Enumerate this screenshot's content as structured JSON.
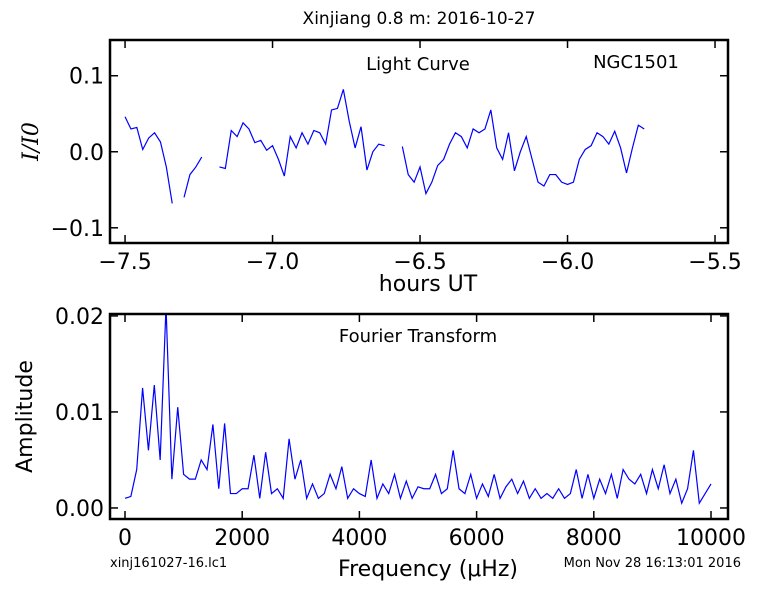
{
  "figure": {
    "title": "Xinjiang 0.8 m:  2016-10-27",
    "footer_left": "xinj161027-16.lc1",
    "footer_right": "Mon Nov 28 16:13:01 2016"
  },
  "chart_data": [
    {
      "type": "line",
      "xlabel": "hours UT",
      "ylabel": "I/I0",
      "annotations": [
        "Light Curve",
        "NGC1501"
      ],
      "color": "#0000ff",
      "xlim": [
        -7.551,
        -5.456
      ],
      "ylim": [
        -0.12,
        0.147
      ],
      "xticks": [
        {
          "value": -7.5,
          "label": "−7.5"
        },
        {
          "value": -7.0,
          "label": "−7.0"
        },
        {
          "value": -6.5,
          "label": "−6.5"
        },
        {
          "value": -6.0,
          "label": "−6.0"
        },
        {
          "value": -5.5,
          "label": "−5.5"
        }
      ],
      "yticks": [
        {
          "value": 0.1,
          "label": "0.1"
        },
        {
          "value": 0.0,
          "label": "0.0"
        },
        {
          "value": -0.1,
          "label": "−0.1"
        }
      ],
      "x": [
        -7.5,
        -7.48,
        -7.46,
        -7.44,
        -7.42,
        -7.4,
        -7.38,
        -7.36,
        -7.34,
        -7.32,
        -7.3,
        -7.28,
        -7.26,
        -7.24,
        -7.22,
        -7.2,
        -7.18,
        -7.16,
        -7.14,
        -7.12,
        -7.1,
        -7.08,
        -7.06,
        -7.04,
        -7.02,
        -7.0,
        -6.98,
        -6.96,
        -6.94,
        -6.92,
        -6.9,
        -6.88,
        -6.86,
        -6.84,
        -6.82,
        -6.8,
        -6.78,
        -6.76,
        -6.74,
        -6.72,
        -6.7,
        -6.68,
        -6.66,
        -6.64,
        -6.62,
        -6.6,
        -6.58,
        -6.56,
        -6.54,
        -6.52,
        -6.5,
        -6.48,
        -6.46,
        -6.44,
        -6.42,
        -6.4,
        -6.38,
        -6.36,
        -6.34,
        -6.32,
        -6.3,
        -6.28,
        -6.26,
        -6.24,
        -6.22,
        -6.2,
        -6.18,
        -6.16,
        -6.14,
        -6.12,
        -6.1,
        -6.08,
        -6.06,
        -6.04,
        -6.02,
        -6.0,
        -5.98,
        -5.96,
        -5.94,
        -5.92,
        -5.9,
        -5.88,
        -5.86,
        -5.84,
        -5.82,
        -5.8,
        -5.78,
        -5.76,
        -5.74
      ],
      "values": [
        0.046,
        0.03,
        0.032,
        0.003,
        0.018,
        0.025,
        0.013,
        -0.02,
        -0.068,
        null,
        -0.06,
        -0.03,
        -0.02,
        -0.007,
        null,
        null,
        -0.02,
        -0.022,
        0.028,
        0.02,
        0.038,
        0.03,
        0.012,
        0.015,
        0.002,
        0.008,
        -0.01,
        -0.032,
        0.02,
        0.005,
        0.025,
        0.01,
        0.028,
        0.025,
        0.01,
        0.055,
        0.057,
        0.082,
        0.04,
        0.005,
        0.033,
        -0.024,
        0.0,
        0.01,
        0.008,
        null,
        null,
        0.007,
        -0.03,
        -0.04,
        -0.02,
        -0.055,
        -0.04,
        -0.018,
        -0.01,
        0.01,
        0.025,
        0.02,
        0.005,
        0.03,
        0.025,
        0.03,
        0.055,
        0.005,
        -0.01,
        0.025,
        -0.025,
        0.0,
        0.02,
        -0.01,
        -0.04,
        -0.045,
        -0.03,
        -0.03,
        -0.04,
        -0.043,
        -0.04,
        -0.01,
        0.003,
        0.008,
        0.025,
        0.02,
        0.01,
        0.027,
        0.005,
        -0.028,
        0.005,
        0.035,
        0.03
      ]
    },
    {
      "type": "line",
      "xlabel": "Frequency (μHz)",
      "ylabel": "Amplitude",
      "annotations": [
        "Fourier Transform"
      ],
      "color": "#0000ff",
      "xlim": [
        -256,
        10290
      ],
      "ylim": [
        -0.00115,
        0.0202
      ],
      "xticks": [
        0,
        2000,
        4000,
        6000,
        8000,
        10000
      ],
      "yticks": [
        {
          "value": 0.0,
          "label": "0.00"
        },
        {
          "value": 0.01,
          "label": "0.01"
        },
        {
          "value": 0.02,
          "label": "0.02"
        }
      ],
      "x": [
        0,
        100,
        200,
        300,
        400,
        500,
        600,
        700,
        800,
        900,
        1000,
        1100,
        1200,
        1300,
        1400,
        1500,
        1600,
        1700,
        1800,
        1900,
        2000,
        2100,
        2200,
        2300,
        2400,
        2500,
        2600,
        2700,
        2800,
        2900,
        3000,
        3100,
        3200,
        3300,
        3400,
        3500,
        3600,
        3700,
        3800,
        3900,
        4000,
        4100,
        4200,
        4300,
        4400,
        4500,
        4600,
        4700,
        4800,
        4900,
        5000,
        5100,
        5200,
        5300,
        5400,
        5500,
        5600,
        5700,
        5800,
        5900,
        6000,
        6100,
        6200,
        6300,
        6400,
        6500,
        6600,
        6700,
        6800,
        6900,
        7000,
        7100,
        7200,
        7300,
        7400,
        7500,
        7600,
        7700,
        7800,
        7900,
        8000,
        8100,
        8200,
        8300,
        8400,
        8500,
        8600,
        8700,
        8800,
        8900,
        9000,
        9100,
        9200,
        9300,
        9400,
        9500,
        9600,
        9700,
        9800,
        9900,
        10000
      ],
      "values": [
        0.001,
        0.0012,
        0.004,
        0.0125,
        0.006,
        0.0128,
        0.005,
        0.021,
        0.003,
        0.0105,
        0.0035,
        0.003,
        0.003,
        0.005,
        0.004,
        0.0087,
        0.002,
        0.0088,
        0.0015,
        0.0015,
        0.002,
        0.002,
        0.0055,
        0.001,
        0.0058,
        0.0015,
        0.002,
        0.001,
        0.0072,
        0.003,
        0.005,
        0.001,
        0.0025,
        0.001,
        0.0015,
        0.0035,
        0.002,
        0.0043,
        0.001,
        0.002,
        0.0015,
        0.0012,
        0.005,
        0.001,
        0.0025,
        0.0015,
        0.0035,
        0.001,
        0.0028,
        0.001,
        0.0022,
        0.002,
        0.002,
        0.0035,
        0.0015,
        0.002,
        0.006,
        0.002,
        0.0015,
        0.0035,
        0.001,
        0.0025,
        0.0012,
        0.0035,
        0.001,
        0.0022,
        0.003,
        0.0015,
        0.0028,
        0.001,
        0.002,
        0.001,
        0.0015,
        0.001,
        0.002,
        0.001,
        0.0015,
        0.004,
        0.001,
        0.0035,
        0.001,
        0.003,
        0.0015,
        0.0035,
        0.001,
        0.004,
        0.003,
        0.0025,
        0.0035,
        0.0015,
        0.004,
        0.002,
        0.0045,
        0.0015,
        0.003,
        0.0005,
        0.002,
        0.006,
        0.0005,
        0.0015,
        0.0025
      ]
    }
  ]
}
